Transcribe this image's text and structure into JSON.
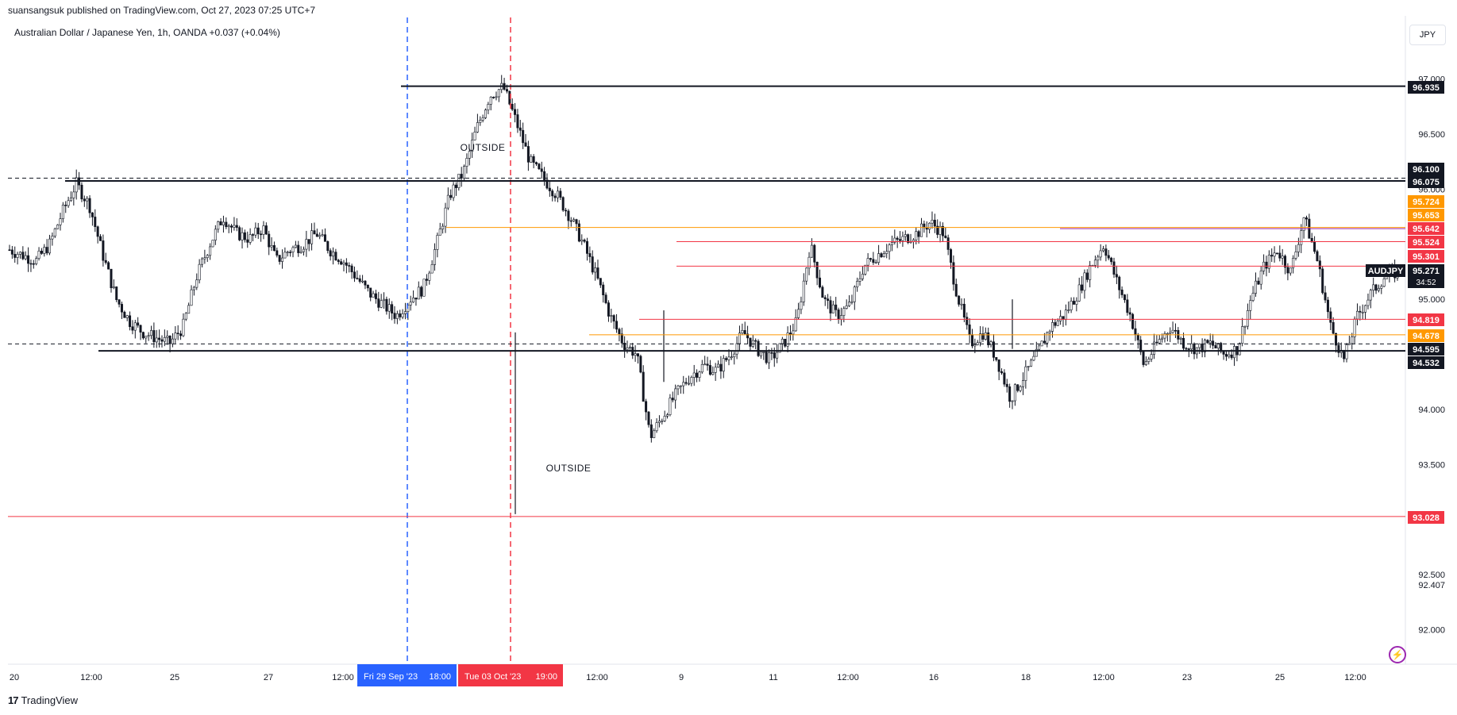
{
  "header": {
    "published": "suansangsuk published on TradingView.com, Oct 27, 2023 07:25 UTC+7",
    "symbol_line": "Australian Dollar / Japanese Yen, 1h, OANDA  +0.037 (+0.04%)",
    "currency": "JPY"
  },
  "footer": {
    "brand": "TradingView",
    "logo_glyph": "17"
  },
  "icons": [
    "lightning-icon",
    "tradingview-logo-icon"
  ],
  "chart_data": {
    "type": "candlestick",
    "symbol": "AUDJPY",
    "interval": "1h",
    "ylim": [
      91.8,
      97.2
    ],
    "y_ticks": [
      "97.000",
      "96.500",
      "96.000",
      "95.000",
      "94.000",
      "93.500",
      "92.500",
      "92.407",
      "92.000"
    ],
    "x_ticks": [
      "20",
      "12:00",
      "25",
      "27",
      "12:00",
      "12:00",
      "9",
      "11",
      "12:00",
      "16",
      "18",
      "12:00",
      "23",
      "25",
      "12:00"
    ],
    "x_highlight_labels": [
      {
        "date": "Fri 29 Sep '23",
        "time": "18:00",
        "color": "#2962ff"
      },
      {
        "date": "Tue 03 Oct '23",
        "time": "19:00",
        "color": "#f23645"
      }
    ],
    "annotations": [
      "OUTSIDE",
      "OUTSIDE"
    ],
    "last_price": {
      "label": "AUDJPY",
      "value": "95.271",
      "countdown": "34:52"
    },
    "price_labels": [
      {
        "value": "96.935",
        "color": "#131722"
      },
      {
        "value": "96.100",
        "color": "#131722"
      },
      {
        "value": "96.075",
        "color": "#131722"
      },
      {
        "value": "95.724",
        "color": "#ff9800"
      },
      {
        "value": "95.653",
        "color": "#ff9800"
      },
      {
        "value": "95.642",
        "color": "#f23645"
      },
      {
        "value": "95.524",
        "color": "#f23645"
      },
      {
        "value": "95.301",
        "color": "#f23645"
      },
      {
        "value": "94.819",
        "color": "#f23645"
      },
      {
        "value": "94.678",
        "color": "#ff9800"
      },
      {
        "value": "94.595",
        "color": "#131722"
      },
      {
        "value": "94.532",
        "color": "#131722"
      },
      {
        "value": "93.028",
        "color": "#f23645"
      }
    ],
    "horizontal_levels": [
      {
        "y": 96.935,
        "color": "#131722",
        "style": "solid"
      },
      {
        "y": 96.1,
        "color": "#131722",
        "style": "dashed"
      },
      {
        "y": 96.075,
        "color": "#131722",
        "style": "solid"
      },
      {
        "y": 95.653,
        "color": "#ff9800",
        "style": "solid"
      },
      {
        "y": 95.642,
        "color": "#9c27b0",
        "style": "solid"
      },
      {
        "y": 95.524,
        "color": "#f23645",
        "style": "solid"
      },
      {
        "y": 95.301,
        "color": "#f23645",
        "style": "solid"
      },
      {
        "y": 94.819,
        "color": "#f23645",
        "style": "solid"
      },
      {
        "y": 94.678,
        "color": "#ff9800",
        "style": "solid"
      },
      {
        "y": 94.595,
        "color": "#131722",
        "style": "dashed"
      },
      {
        "y": 94.532,
        "color": "#131722",
        "style": "solid"
      },
      {
        "y": 93.028,
        "color": "#f23645",
        "style": "solid"
      }
    ],
    "price_path": [
      95.45,
      95.4,
      95.35,
      95.5,
      95.8,
      96.05,
      95.85,
      95.4,
      95.0,
      94.8,
      94.7,
      94.65,
      94.6,
      94.75,
      95.2,
      95.5,
      95.75,
      95.6,
      95.55,
      95.65,
      95.35,
      95.45,
      95.5,
      95.6,
      95.45,
      95.35,
      95.2,
      95.05,
      94.95,
      94.85,
      95.0,
      95.1,
      95.5,
      95.95,
      96.15,
      96.55,
      96.85,
      96.93,
      96.6,
      96.25,
      96.1,
      95.95,
      95.75,
      95.5,
      95.2,
      94.85,
      94.6,
      94.5,
      93.75,
      93.95,
      94.15,
      94.3,
      94.4,
      94.35,
      94.5,
      94.7,
      94.55,
      94.45,
      94.6,
      94.8,
      95.5,
      95.0,
      94.85,
      94.95,
      95.3,
      95.4,
      95.5,
      95.55,
      95.6,
      95.7,
      95.6,
      95.05,
      94.6,
      94.7,
      94.45,
      94.1,
      94.3,
      94.5,
      94.75,
      94.85,
      95.05,
      95.3,
      95.5,
      95.15,
      94.85,
      94.4,
      94.6,
      94.75,
      94.6,
      94.55,
      94.6,
      94.5,
      94.55,
      95.0,
      95.3,
      95.45,
      95.25,
      95.75,
      95.35,
      94.75,
      94.45,
      94.85,
      95.05,
      95.2,
      95.25
    ]
  }
}
